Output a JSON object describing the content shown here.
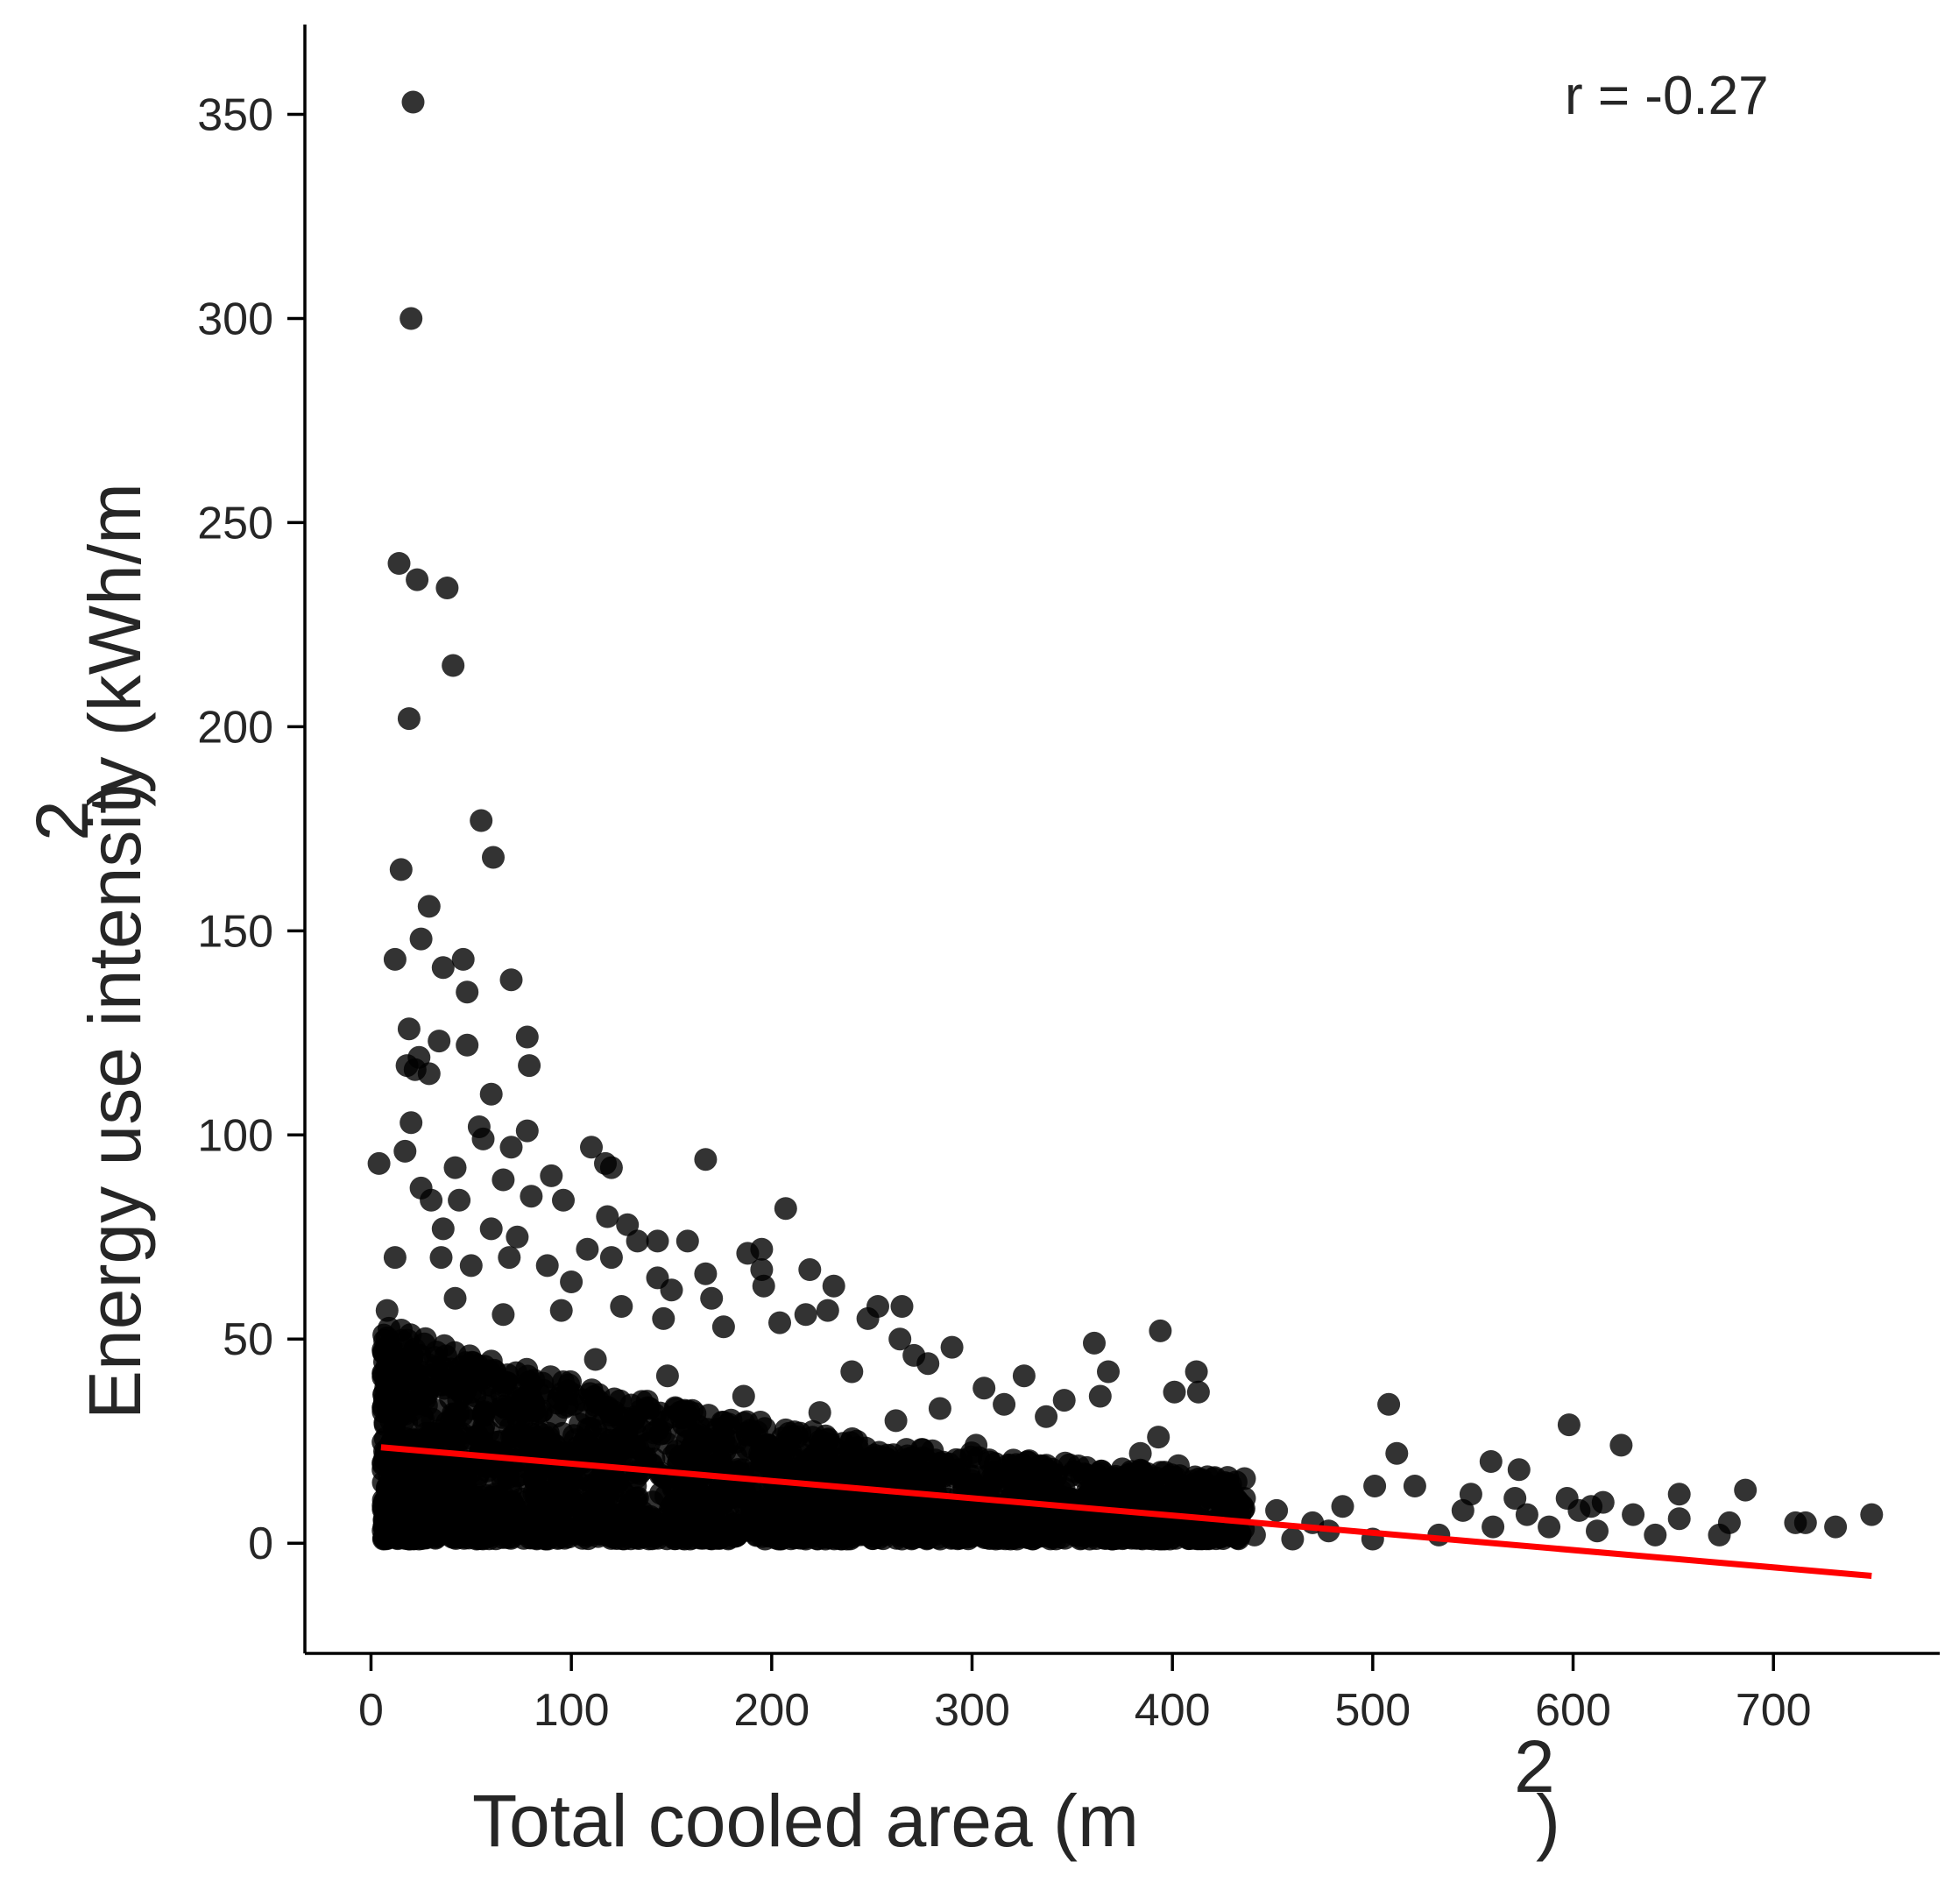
{
  "chart_data": {
    "type": "scatter",
    "xlabel": "Total cooled area (m",
    "xlabel_sup": "2",
    "xlabel_close": ")",
    "ylabel": "Energy use intensity (kWh/m",
    "ylabel_sup": "2",
    "ylabel_close": ")",
    "xlim": [
      -33,
      783
    ],
    "ylim": [
      -27,
      372
    ],
    "xticks": [
      0,
      100,
      200,
      300,
      400,
      500,
      600,
      700
    ],
    "yticks": [
      0,
      50,
      100,
      150,
      200,
      250,
      300,
      350
    ],
    "xtick_labels": [
      "0",
      "100",
      "200",
      "300",
      "400",
      "500",
      "600",
      "700"
    ],
    "ytick_labels": [
      "0",
      "50",
      "100",
      "150",
      "200",
      "250",
      "300",
      "350"
    ],
    "grid": false,
    "legend": "none",
    "annotation": "r = -0.27",
    "point_color": "#000000",
    "point_opacity": 0.8,
    "regression_color": "#ff0000",
    "regression_line": {
      "x": [
        5,
        749
      ],
      "y": [
        23.5,
        -8.0
      ]
    },
    "series": [
      {
        "values": [
          [
            21,
            353
          ],
          [
            20,
            300
          ],
          [
            14,
            240
          ],
          [
            23,
            236
          ],
          [
            38,
            234
          ],
          [
            41,
            215
          ],
          [
            19,
            202
          ],
          [
            55,
            177
          ],
          [
            61,
            168
          ],
          [
            15,
            165
          ],
          [
            29,
            156
          ],
          [
            25,
            148
          ],
          [
            12,
            143
          ],
          [
            36,
            141
          ],
          [
            46,
            143
          ],
          [
            70,
            138
          ],
          [
            48,
            135
          ],
          [
            19,
            126
          ],
          [
            78,
            124
          ],
          [
            24,
            119
          ],
          [
            48,
            122
          ],
          [
            34,
            123
          ],
          [
            18,
            117
          ],
          [
            29,
            115
          ],
          [
            79,
            117
          ],
          [
            60,
            110
          ],
          [
            22,
            116
          ],
          [
            54,
            102
          ],
          [
            20,
            103
          ],
          [
            78,
            101
          ],
          [
            4,
            93
          ],
          [
            17,
            96
          ],
          [
            56,
            99
          ],
          [
            42,
            92
          ],
          [
            70,
            97
          ],
          [
            110,
            97
          ],
          [
            90,
            90
          ],
          [
            117,
            93
          ],
          [
            120,
            92
          ],
          [
            167,
            94
          ],
          [
            207,
            82
          ],
          [
            25,
            87
          ],
          [
            66,
            89
          ],
          [
            30,
            84
          ],
          [
            44,
            84
          ],
          [
            80,
            85
          ],
          [
            96,
            84
          ],
          [
            118,
            80
          ],
          [
            128,
            78
          ],
          [
            133,
            74
          ],
          [
            143,
            74
          ],
          [
            158,
            74
          ],
          [
            36,
            77
          ],
          [
            60,
            77
          ],
          [
            73,
            75
          ],
          [
            108,
            72
          ],
          [
            120,
            70
          ],
          [
            188,
            71
          ],
          [
            195,
            72
          ],
          [
            219,
            67
          ],
          [
            231,
            63
          ],
          [
            12,
            70
          ],
          [
            35,
            70
          ],
          [
            50,
            68
          ],
          [
            69,
            70
          ],
          [
            88,
            68
          ],
          [
            100,
            64
          ],
          [
            143,
            65
          ],
          [
            167,
            66
          ],
          [
            195,
            67
          ],
          [
            253,
            58
          ],
          [
            265,
            58
          ],
          [
            196,
            63
          ],
          [
            150,
            62
          ],
          [
            170,
            60
          ],
          [
            217,
            56
          ],
          [
            228,
            57
          ],
          [
            248,
            55
          ],
          [
            8,
            57
          ],
          [
            42,
            60
          ],
          [
            66,
            56
          ],
          [
            95,
            57
          ],
          [
            125,
            58
          ],
          [
            146,
            55
          ],
          [
            176,
            53
          ],
          [
            204,
            54
          ],
          [
            264,
            50
          ],
          [
            361,
            49
          ],
          [
            394,
            52
          ],
          [
            290,
            48
          ],
          [
            271,
            46
          ],
          [
            278,
            44
          ],
          [
            240,
            42
          ],
          [
            326,
            41
          ],
          [
            368,
            42
          ],
          [
            412,
            42
          ],
          [
            306,
            38
          ],
          [
            346,
            35
          ],
          [
            364,
            36
          ],
          [
            401,
            37
          ],
          [
            413,
            37
          ],
          [
            316,
            34
          ],
          [
            284,
            33
          ],
          [
            337,
            31
          ],
          [
            508,
            34
          ],
          [
            598,
            29
          ],
          [
            624,
            24
          ],
          [
            393,
            26
          ],
          [
            384,
            22
          ],
          [
            512,
            22
          ],
          [
            559,
            20
          ],
          [
            573,
            18
          ],
          [
            403,
            19
          ],
          [
            356,
            17
          ],
          [
            367,
            14
          ],
          [
            501,
            14
          ],
          [
            521,
            14
          ],
          [
            549,
            12
          ],
          [
            571,
            11
          ],
          [
            597,
            11
          ],
          [
            615,
            10
          ],
          [
            653,
            12
          ],
          [
            686,
            13
          ],
          [
            545,
            8
          ],
          [
            577,
            7
          ],
          [
            603,
            8
          ],
          [
            609,
            9
          ],
          [
            630,
            7
          ],
          [
            653,
            6
          ],
          [
            678,
            5
          ],
          [
            711,
            5
          ],
          [
            716,
            5
          ],
          [
            731,
            4
          ],
          [
            749,
            7
          ],
          [
            641,
            2
          ],
          [
            673,
            2
          ],
          [
            612,
            3
          ],
          [
            588,
            4
          ],
          [
            560,
            4
          ],
          [
            533,
            2
          ],
          [
            500,
            1
          ],
          [
            470,
            5
          ],
          [
            452,
            8
          ],
          [
            436,
            11
          ],
          [
            441,
            2
          ],
          [
            460,
            1
          ],
          [
            485,
            9
          ],
          [
            478,
            3
          ],
          [
            8,
            40
          ],
          [
            10,
            30
          ],
          [
            12,
            20
          ],
          [
            14,
            10
          ],
          [
            9,
            5
          ],
          [
            16,
            45
          ],
          [
            22,
            34
          ],
          [
            28,
            26
          ],
          [
            32,
            16
          ],
          [
            38,
            8
          ],
          [
            44,
            42
          ],
          [
            50,
            30
          ],
          [
            56,
            22
          ],
          [
            62,
            12
          ],
          [
            68,
            4
          ],
          [
            76,
            38
          ],
          [
            84,
            27
          ],
          [
            90,
            18
          ],
          [
            98,
            10
          ],
          [
            104,
            3
          ],
          [
            112,
            45
          ],
          [
            118,
            33
          ],
          [
            126,
            24
          ],
          [
            132,
            14
          ],
          [
            140,
            6
          ],
          [
            148,
            41
          ],
          [
            156,
            29
          ],
          [
            162,
            20
          ],
          [
            170,
            11
          ],
          [
            178,
            3
          ],
          [
            186,
            36
          ],
          [
            192,
            26
          ],
          [
            200,
            17
          ],
          [
            208,
            9
          ],
          [
            216,
            2
          ],
          [
            224,
            32
          ],
          [
            232,
            23
          ],
          [
            240,
            15
          ],
          [
            248,
            7
          ],
          [
            256,
            2
          ],
          [
            262,
            30
          ],
          [
            270,
            21
          ],
          [
            278,
            13
          ],
          [
            286,
            6
          ],
          [
            294,
            2
          ],
          [
            302,
            24
          ],
          [
            310,
            16
          ],
          [
            318,
            9
          ],
          [
            326,
            3
          ],
          [
            334,
            19
          ],
          [
            342,
            12
          ],
          [
            350,
            6
          ],
          [
            358,
            2
          ],
          [
            366,
            14
          ],
          [
            374,
            9
          ],
          [
            382,
            4
          ],
          [
            390,
            12
          ],
          [
            398,
            6
          ],
          [
            406,
            2
          ],
          [
            414,
            10
          ],
          [
            422,
            5
          ],
          [
            430,
            3
          ]
        ]
      }
    ]
  }
}
